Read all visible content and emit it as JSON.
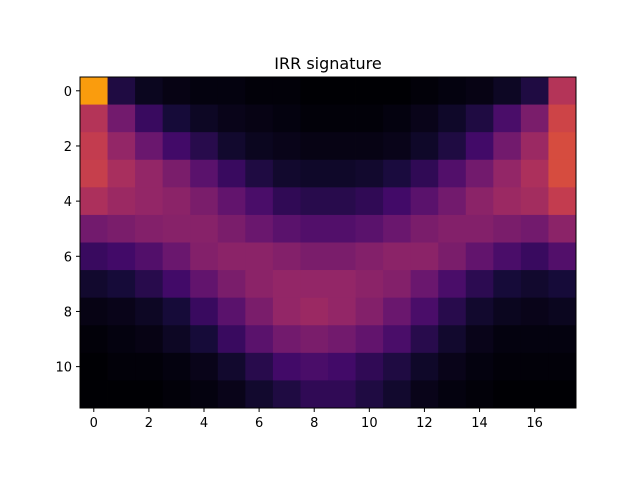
{
  "chart_data": {
    "type": "heatmap",
    "title": "IRR signature",
    "xlabel": "",
    "ylabel": "",
    "colormap": "inferno",
    "value_range": [
      0,
      1
    ],
    "x_ticks": [
      0,
      2,
      4,
      6,
      8,
      10,
      12,
      14,
      16
    ],
    "y_ticks": [
      0,
      2,
      4,
      6,
      8,
      10
    ],
    "n_rows": 12,
    "n_cols": 18,
    "grid": false,
    "values": [
      [
        0.78,
        0.12,
        0.05,
        0.03,
        0.02,
        0.02,
        0.01,
        0.01,
        0.0,
        0.0,
        0.0,
        0.0,
        0.01,
        0.02,
        0.03,
        0.06,
        0.12,
        0.48
      ],
      [
        0.48,
        0.32,
        0.18,
        0.1,
        0.06,
        0.04,
        0.03,
        0.02,
        0.01,
        0.01,
        0.01,
        0.02,
        0.04,
        0.07,
        0.12,
        0.22,
        0.34,
        0.55
      ],
      [
        0.52,
        0.4,
        0.3,
        0.2,
        0.14,
        0.08,
        0.05,
        0.04,
        0.03,
        0.03,
        0.03,
        0.04,
        0.07,
        0.12,
        0.2,
        0.32,
        0.42,
        0.58
      ],
      [
        0.53,
        0.45,
        0.4,
        0.34,
        0.26,
        0.18,
        0.12,
        0.08,
        0.07,
        0.07,
        0.08,
        0.11,
        0.16,
        0.24,
        0.32,
        0.4,
        0.46,
        0.58
      ],
      [
        0.46,
        0.42,
        0.4,
        0.38,
        0.34,
        0.28,
        0.22,
        0.16,
        0.14,
        0.14,
        0.16,
        0.2,
        0.26,
        0.32,
        0.38,
        0.42,
        0.44,
        0.52
      ],
      [
        0.32,
        0.34,
        0.36,
        0.37,
        0.37,
        0.34,
        0.3,
        0.26,
        0.24,
        0.24,
        0.26,
        0.3,
        0.34,
        0.36,
        0.36,
        0.34,
        0.32,
        0.38
      ],
      [
        0.18,
        0.2,
        0.24,
        0.3,
        0.36,
        0.38,
        0.38,
        0.36,
        0.34,
        0.34,
        0.36,
        0.38,
        0.38,
        0.34,
        0.28,
        0.22,
        0.18,
        0.24
      ],
      [
        0.08,
        0.1,
        0.14,
        0.2,
        0.28,
        0.34,
        0.38,
        0.4,
        0.4,
        0.4,
        0.38,
        0.36,
        0.3,
        0.22,
        0.15,
        0.1,
        0.08,
        0.1
      ],
      [
        0.03,
        0.04,
        0.06,
        0.1,
        0.18,
        0.26,
        0.34,
        0.4,
        0.42,
        0.4,
        0.36,
        0.3,
        0.22,
        0.14,
        0.08,
        0.05,
        0.04,
        0.05
      ],
      [
        0.01,
        0.02,
        0.03,
        0.06,
        0.1,
        0.18,
        0.26,
        0.32,
        0.34,
        0.32,
        0.28,
        0.22,
        0.14,
        0.08,
        0.04,
        0.02,
        0.02,
        0.02
      ],
      [
        0.0,
        0.01,
        0.01,
        0.02,
        0.04,
        0.08,
        0.14,
        0.2,
        0.22,
        0.2,
        0.16,
        0.12,
        0.07,
        0.04,
        0.02,
        0.01,
        0.01,
        0.01
      ],
      [
        0.0,
        0.0,
        0.0,
        0.01,
        0.02,
        0.04,
        0.08,
        0.12,
        0.16,
        0.16,
        0.12,
        0.08,
        0.04,
        0.02,
        0.01,
        0.0,
        0.0,
        0.0
      ]
    ]
  }
}
